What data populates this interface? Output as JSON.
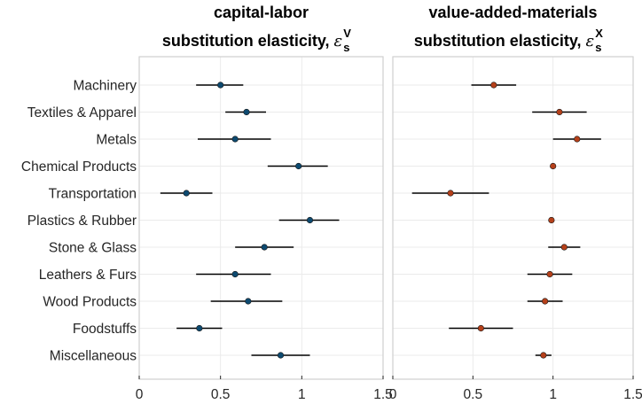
{
  "chart_data": [
    {
      "type": "scatter",
      "title_line1": "capital-labor",
      "title_line2": "substitution elasticity,",
      "title_symbol": "ε",
      "title_subscript": "s",
      "title_superscript": "V",
      "categories": [
        "Machinery",
        "Textiles & Apparel",
        "Metals",
        "Chemical Products",
        "Transportation",
        "Plastics & Rubber",
        "Stone & Glass",
        "Leathers & Furs",
        "Wood Products",
        "Foodstuffs",
        "Miscellaneous"
      ],
      "values": [
        0.5,
        0.66,
        0.59,
        0.98,
        0.29,
        1.05,
        0.77,
        0.59,
        0.67,
        0.37,
        0.87
      ],
      "ci_low": [
        0.35,
        0.53,
        0.36,
        0.79,
        0.13,
        0.86,
        0.59,
        0.35,
        0.44,
        0.23,
        0.69
      ],
      "ci_high": [
        0.64,
        0.78,
        0.81,
        1.16,
        0.45,
        1.23,
        0.95,
        0.81,
        0.88,
        0.51,
        1.05
      ],
      "xlim": [
        0,
        1.5
      ],
      "xticks": [
        "0",
        "0.5",
        "1",
        "1.5"
      ],
      "marker_color": "#0d4a70",
      "grid": true
    },
    {
      "type": "scatter",
      "title_line1": "value-added-materials",
      "title_line2": "substitution elasticity,",
      "title_symbol": "ε",
      "title_subscript": "s",
      "title_superscript": "X",
      "categories": [
        "Machinery",
        "Textiles & Apparel",
        "Metals",
        "Chemical Products",
        "Transportation",
        "Plastics & Rubber",
        "Stone & Glass",
        "Leathers & Furs",
        "Wood Products",
        "Foodstuffs",
        "Miscellaneous"
      ],
      "values": [
        0.63,
        1.04,
        1.15,
        1.0,
        0.36,
        0.99,
        1.07,
        0.98,
        0.95,
        0.55,
        0.94
      ],
      "ci_low": [
        0.49,
        0.87,
        1.0,
        0.99,
        0.12,
        0.98,
        0.97,
        0.84,
        0.84,
        0.35,
        0.89
      ],
      "ci_high": [
        0.77,
        1.21,
        1.3,
        1.01,
        0.6,
        1.0,
        1.17,
        1.12,
        1.06,
        0.75,
        0.99
      ],
      "xlim": [
        0,
        1.5
      ],
      "xticks": [
        "0",
        "0.5",
        "1",
        "1.5"
      ],
      "marker_color": "#b5401a",
      "grid": true
    }
  ]
}
